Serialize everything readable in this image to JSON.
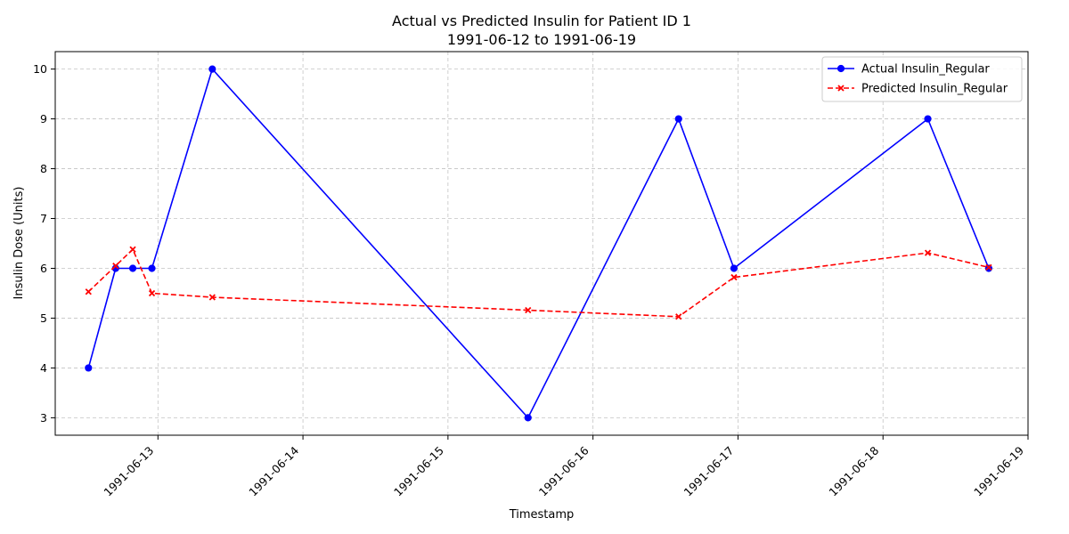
{
  "chart_data": {
    "type": "line",
    "title_line1": "Actual vs Predicted Insulin for Patient ID 1",
    "title_line2": "1991-06-12 to 1991-06-19",
    "xlabel": "Timestamp",
    "ylabel": "Insulin Dose (Units)",
    "x_ticks": [
      "1991-06-13",
      "1991-06-14",
      "1991-06-15",
      "1991-06-16",
      "1991-06-17",
      "1991-06-18",
      "1991-06-19"
    ],
    "y_ticks": [
      3,
      4,
      5,
      6,
      7,
      8,
      9,
      10
    ],
    "xlim": [
      "1991-06-12 07:00",
      "1991-06-19 00:00"
    ],
    "ylim": [
      2.65,
      10.35
    ],
    "grid": true,
    "legend_position": "top-right",
    "series": [
      {
        "name": "Actual Insulin_Regular",
        "color": "#0000ff",
        "line_style": "solid",
        "marker": "circle",
        "x": [
          "1991-06-12 12:30",
          "1991-06-12 17:00",
          "1991-06-12 19:50",
          "1991-06-12 23:00",
          "1991-06-13 09:00",
          "1991-06-15 13:15",
          "1991-06-16 14:10",
          "1991-06-16 23:20",
          "1991-06-18 07:25",
          "1991-06-18 17:30"
        ],
        "values": [
          4,
          6,
          6,
          6,
          10,
          3,
          9,
          6,
          9,
          6
        ]
      },
      {
        "name": "Predicted Insulin_Regular",
        "color": "#ff0000",
        "line_style": "dashed",
        "marker": "x",
        "x": [
          "1991-06-12 12:30",
          "1991-06-12 17:00",
          "1991-06-12 19:50",
          "1991-06-12 23:00",
          "1991-06-13 09:00",
          "1991-06-15 13:15",
          "1991-06-16 14:10",
          "1991-06-16 23:20",
          "1991-06-18 07:25",
          "1991-06-18 17:30"
        ],
        "values": [
          5.53,
          6.05,
          6.38,
          5.5,
          5.42,
          5.16,
          5.03,
          5.82,
          6.31,
          6.02
        ]
      }
    ]
  }
}
